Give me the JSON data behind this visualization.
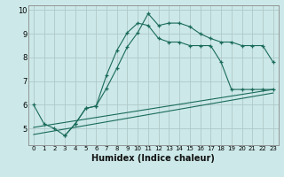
{
  "xlabel": "Humidex (Indice chaleur)",
  "bg_color": "#cce8e8",
  "grid_color": "#b0c8c8",
  "line_color": "#1a6b5a",
  "xlim": [
    -0.5,
    23.5
  ],
  "ylim": [
    4.3,
    10.2
  ],
  "xticks": [
    0,
    1,
    2,
    3,
    4,
    5,
    6,
    7,
    8,
    9,
    10,
    11,
    12,
    13,
    14,
    15,
    16,
    17,
    18,
    19,
    20,
    21,
    22,
    23
  ],
  "yticks": [
    5,
    6,
    7,
    8,
    9,
    10
  ],
  "line1_x": [
    0,
    1,
    2,
    3,
    4,
    5,
    6,
    7,
    8,
    9,
    10,
    11,
    12,
    13,
    14,
    15,
    16,
    17,
    18,
    19,
    20,
    21,
    22,
    23
  ],
  "line1_y": [
    6.0,
    5.2,
    5.0,
    4.7,
    5.2,
    5.85,
    5.95,
    6.7,
    7.55,
    8.45,
    9.05,
    9.85,
    9.35,
    9.45,
    9.45,
    9.3,
    9.0,
    8.8,
    8.65,
    8.65,
    8.5,
    8.5,
    8.5,
    7.8
  ],
  "line2_x": [
    3,
    4,
    5,
    6,
    7,
    8,
    9,
    10,
    11,
    12,
    13,
    14,
    15,
    16,
    17,
    18,
    19,
    20,
    21,
    22,
    23
  ],
  "line2_y": [
    4.7,
    5.2,
    5.85,
    5.95,
    7.25,
    8.3,
    9.05,
    9.45,
    9.35,
    8.8,
    8.65,
    8.65,
    8.5,
    8.5,
    8.5,
    7.8,
    6.65,
    6.65,
    6.65,
    6.65,
    6.65
  ],
  "line3_x": [
    0,
    23
  ],
  "line3_y": [
    4.75,
    6.5
  ],
  "line4_x": [
    0,
    23
  ],
  "line4_y": [
    5.05,
    6.65
  ]
}
